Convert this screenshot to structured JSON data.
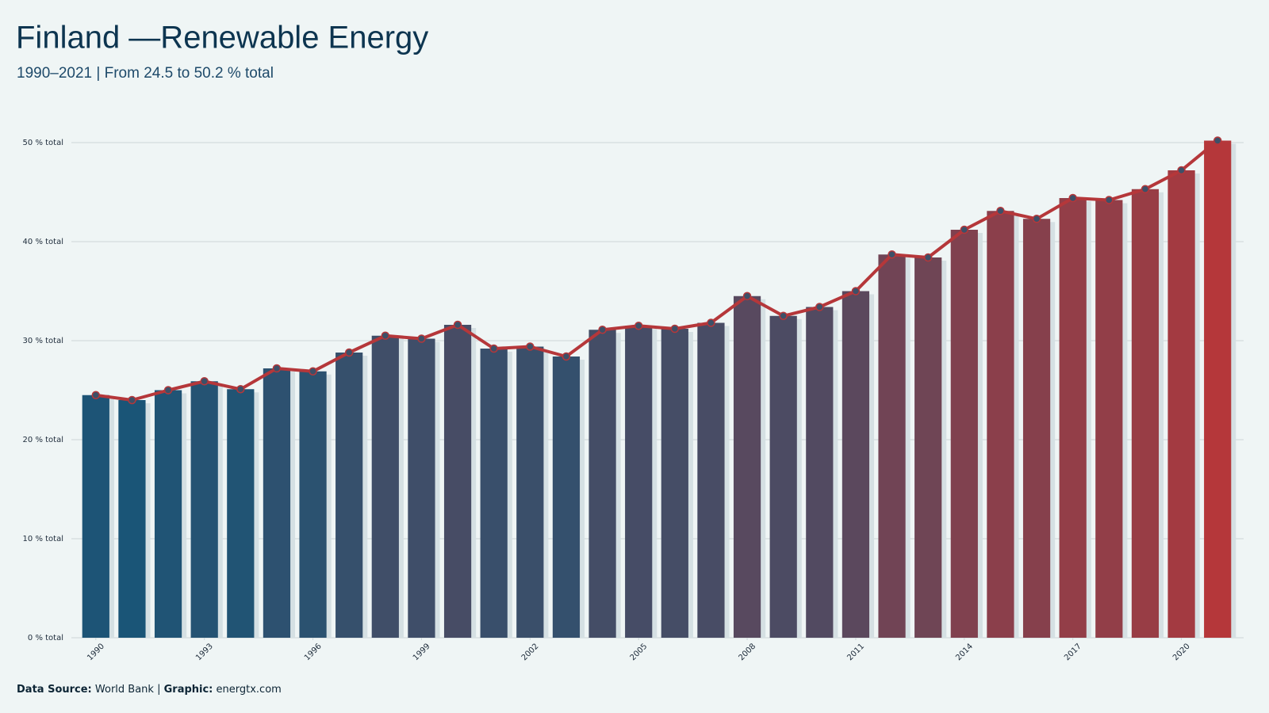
{
  "chart_data": {
    "type": "bar_line",
    "title": "Finland —Renewable Energy",
    "subtitle": "1990–2021 | From 24.5 to 50.2 % total",
    "source_label": "Data Source:",
    "source": "World Bank",
    "graphic_label": "Graphic:",
    "graphic": "energtx.com",
    "x": [
      1990,
      1991,
      1992,
      1993,
      1994,
      1995,
      1996,
      1997,
      1998,
      1999,
      2000,
      2001,
      2002,
      2003,
      2004,
      2005,
      2006,
      2007,
      2008,
      2009,
      2010,
      2011,
      2012,
      2013,
      2014,
      2015,
      2016,
      2017,
      2018,
      2019,
      2020,
      2021
    ],
    "values": [
      24.5,
      24.0,
      25.0,
      25.9,
      25.1,
      27.2,
      26.9,
      28.8,
      30.5,
      30.2,
      31.6,
      29.2,
      29.4,
      28.4,
      31.1,
      31.5,
      31.2,
      31.8,
      34.5,
      32.5,
      33.4,
      35.0,
      38.7,
      38.4,
      41.2,
      43.1,
      42.3,
      44.4,
      44.2,
      45.3,
      47.2,
      50.2
    ],
    "color_scale": [
      "#1a5577",
      "#b5373a"
    ],
    "line_color": "#b5373a",
    "point_color": "#3d5068",
    "xlim": [
      1989.5,
      2021.5
    ],
    "xticks": [
      1990,
      1993,
      1996,
      1999,
      2002,
      2005,
      2008,
      2011,
      2014,
      2017,
      2020
    ],
    "ylim": [
      0,
      52
    ],
    "yticks": [
      {
        "value": 0,
        "label": "0 % total"
      },
      {
        "value": 10,
        "label": "10 % total"
      },
      {
        "value": 20,
        "label": "20 % total"
      },
      {
        "value": 30,
        "label": "30 % total"
      },
      {
        "value": 40,
        "label": "40 % total"
      },
      {
        "value": 50,
        "label": "50 % total"
      }
    ],
    "grid": true
  }
}
